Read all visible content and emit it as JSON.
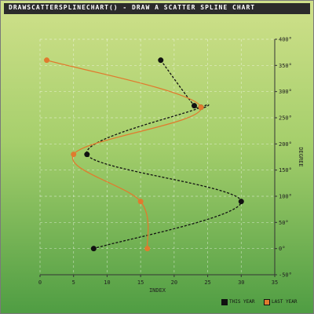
{
  "title": "DRAWSCATTERSPLINECHART() - DRAW A SCATTER SPLINE CHART",
  "chart_data": {
    "type": "scatter",
    "xlabel": "INDEX",
    "ylabel": "DEGREE",
    "xlim": [
      0,
      35
    ],
    "ylim": [
      -50,
      400
    ],
    "x_ticks": [
      "0",
      "5",
      "10",
      "15",
      "20",
      "25",
      "30",
      "35"
    ],
    "y_ticks": [
      "-50°",
      "0°",
      "50°",
      "100°",
      "150°",
      "200°",
      "250°",
      "300°",
      "350°",
      "400°"
    ],
    "grid": true,
    "legend_position": "bottom-right",
    "series": [
      {
        "name": "THIS YEAR",
        "color": "#111111",
        "line_style": "dashed",
        "points": [
          [
            18,
            360
          ],
          [
            23,
            273
          ],
          [
            24,
            270
          ],
          [
            7,
            180
          ],
          [
            30,
            90
          ],
          [
            8,
            0
          ]
        ]
      },
      {
        "name": "LAST YEAR",
        "color": "#e07b2e",
        "line_style": "solid",
        "points": [
          [
            1,
            360
          ],
          [
            24,
            270
          ],
          [
            5,
            180
          ],
          [
            15,
            90
          ],
          [
            16,
            0
          ]
        ]
      }
    ]
  }
}
